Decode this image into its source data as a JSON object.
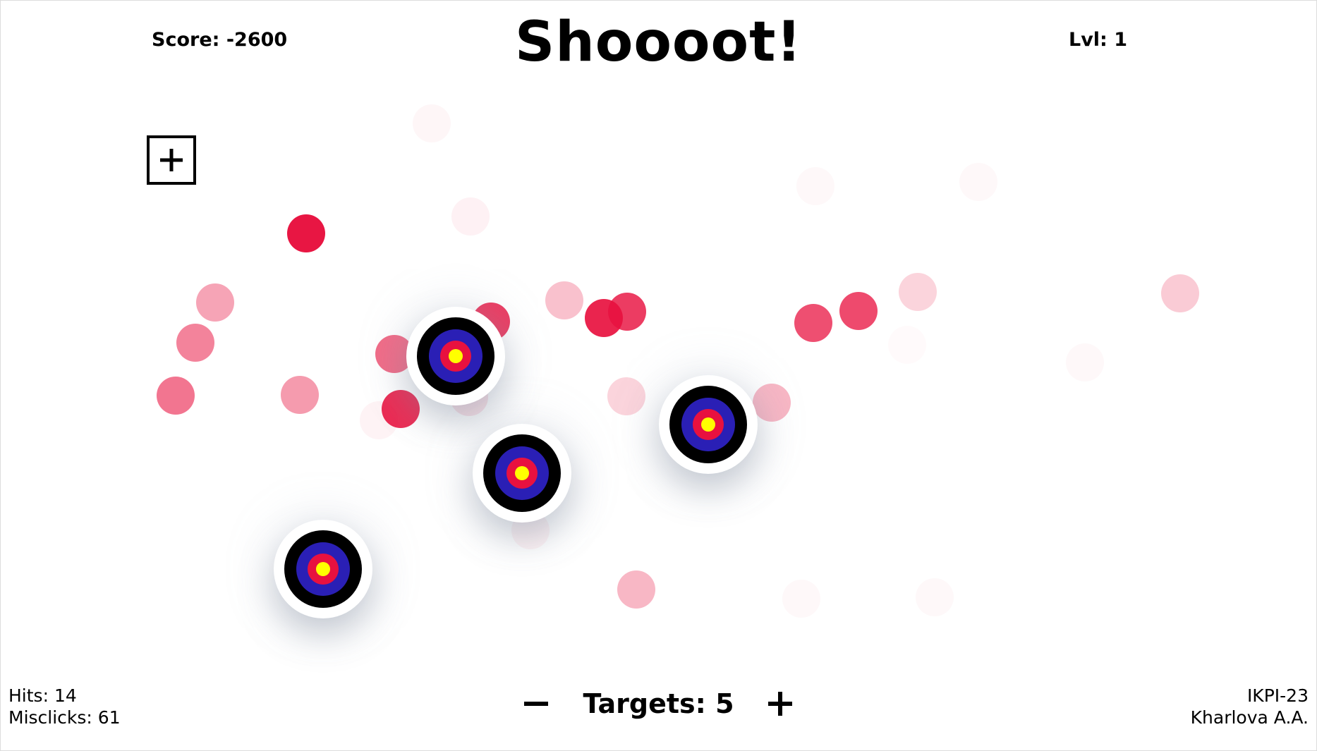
{
  "header": {
    "score_label": "Score: -2600",
    "title": "Shoooot!",
    "level_label": "Lvl: 1"
  },
  "add_button": {
    "icon": "plus-icon"
  },
  "footer": {
    "hits_label": "Hits: 14",
    "misclicks_label": "Misclicks: 61",
    "targets_label": "Targets: 5",
    "decrease_icon": "minus-icon",
    "increase_icon": "plus-icon",
    "group": "IKPI-23",
    "author": "Kharlova A.A."
  },
  "stats": {
    "hits": 14,
    "misclicks": 61,
    "score": -2600,
    "level": 1,
    "targets": 5
  },
  "colors": {
    "miss_dot": "#e8113f",
    "target_outer": "#000000",
    "target_blue": "#2a1fb5",
    "target_red": "#e8113f",
    "target_center": "#ffff00"
  }
}
